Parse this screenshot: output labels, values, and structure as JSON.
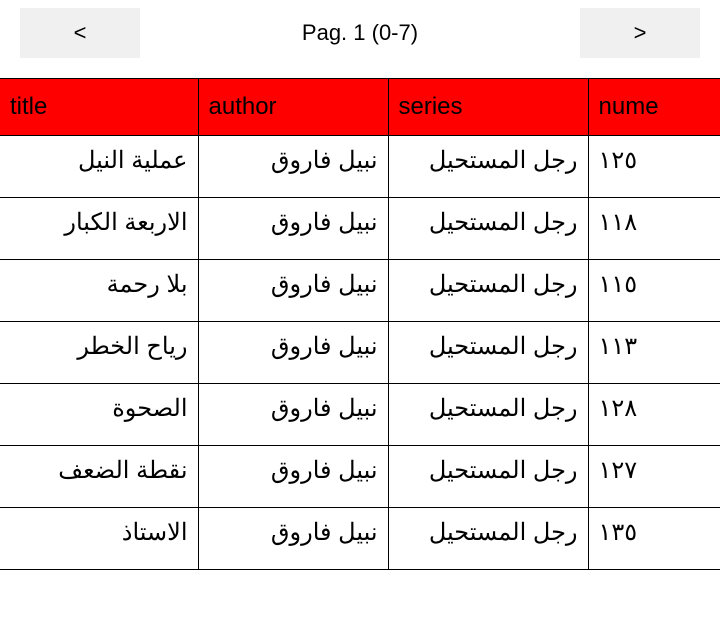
{
  "pagination": {
    "prev_label": "<",
    "next_label": ">",
    "page_label": "Pag. 1 (0-7)"
  },
  "table": {
    "header_bg": "#ff0000",
    "border_color": "#000000",
    "columns": [
      {
        "key": "title",
        "label": "title"
      },
      {
        "key": "author",
        "label": "author"
      },
      {
        "key": "series",
        "label": "series"
      },
      {
        "key": "number",
        "label": "nume"
      }
    ],
    "rows": [
      {
        "title": "عملية النيل",
        "author": "نبيل فاروق",
        "series": "رجل المستحيل",
        "number": "١٢٥"
      },
      {
        "title": "الاربعة الكبار",
        "author": "نبيل فاروق",
        "series": "رجل المستحيل",
        "number": "١١٨"
      },
      {
        "title": "بلا رحمة",
        "author": "نبيل فاروق",
        "series": "رجل المستحيل",
        "number": "١١٥"
      },
      {
        "title": "رياح الخطر",
        "author": "نبيل فاروق",
        "series": "رجل المستحيل",
        "number": "١١٣"
      },
      {
        "title": "الصحوة",
        "author": "نبيل فاروق",
        "series": "رجل المستحيل",
        "number": "١٢٨"
      },
      {
        "title": "نقطة الضعف",
        "author": "نبيل فاروق",
        "series": "رجل المستحيل",
        "number": "١٢٧"
      },
      {
        "title": "الاستاذ",
        "author": "نبيل فاروق",
        "series": "رجل المستحيل",
        "number": "١٣٥"
      }
    ]
  }
}
